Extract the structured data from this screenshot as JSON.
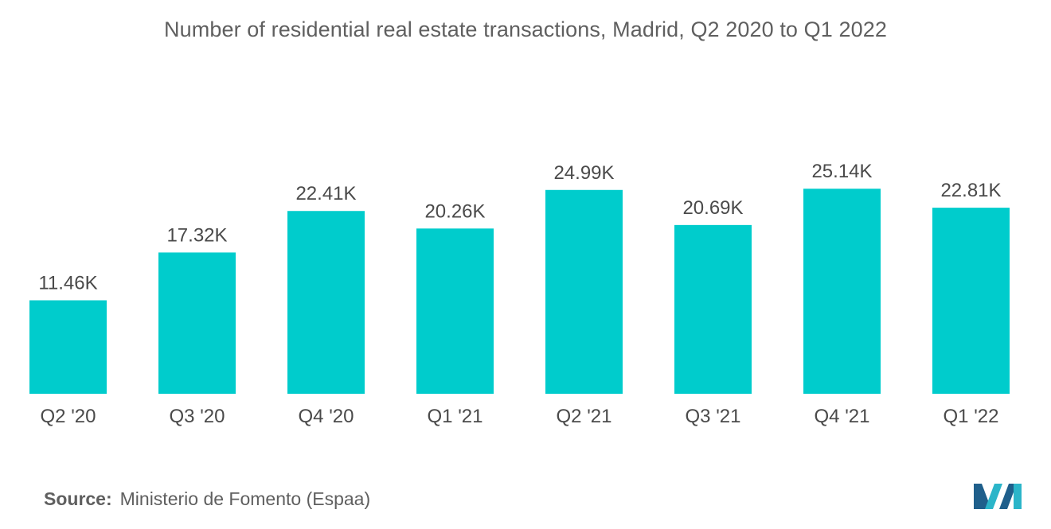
{
  "chart_data": {
    "type": "bar",
    "title": "Number of residential real estate transactions, Madrid, Q2 2020 to Q1 2022",
    "categories": [
      "Q2 '20",
      "Q3 '20",
      "Q4 '20",
      "Q1 '21",
      "Q2 '21",
      "Q3 '21",
      "Q4 '21",
      "Q1 '22"
    ],
    "values": [
      11460,
      17320,
      22410,
      20260,
      24990,
      20690,
      25140,
      22810
    ],
    "data_labels": [
      "11.46K",
      "17.32K",
      "22.41K",
      "20.26K",
      "24.99K",
      "20.69K",
      "25.14K",
      "22.81K"
    ],
    "xlabel": "",
    "ylabel": "",
    "ylim": [
      0,
      30000
    ],
    "grid": false,
    "legend": "none",
    "bar_color": "#00CCCC"
  },
  "source": {
    "label": "Source:",
    "text": "Ministerio de Fomento (Espaa)"
  },
  "logo": {
    "icon": "mordor-intelligence-logo-icon",
    "colors": [
      "#1f5f8b",
      "#2bb5c9"
    ]
  }
}
